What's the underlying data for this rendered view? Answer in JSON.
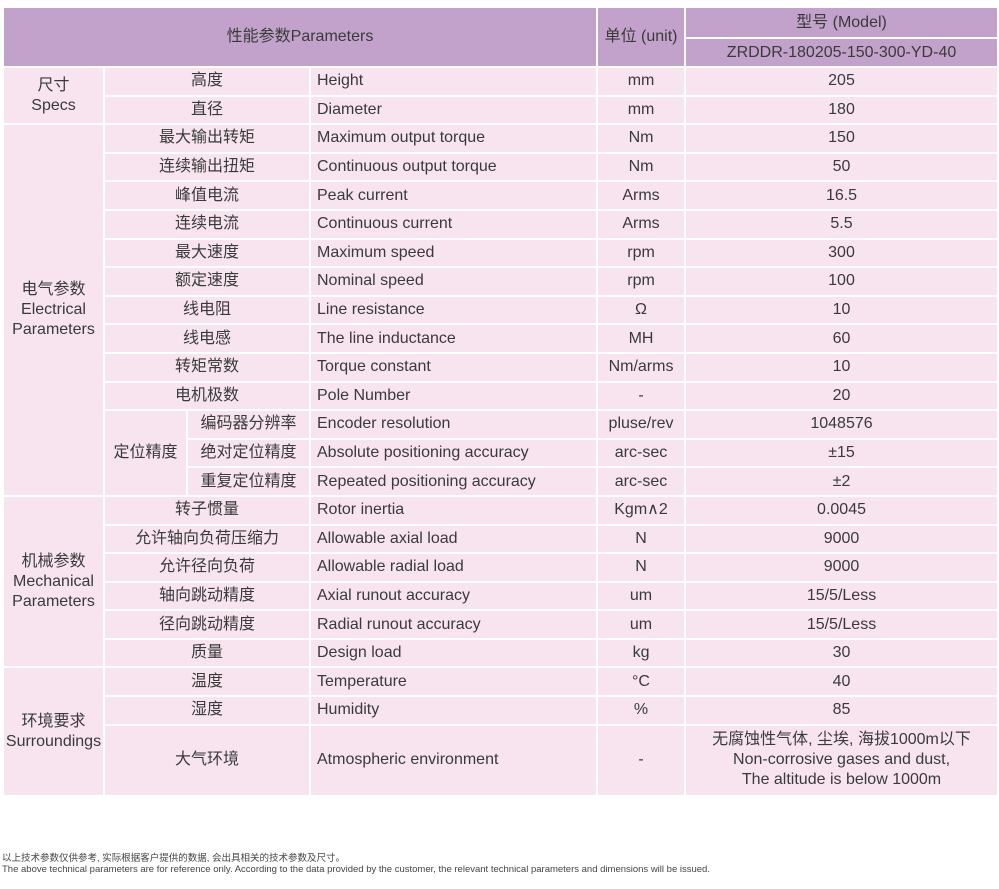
{
  "header": {
    "parameters": "性能参数Parameters",
    "unit": "单位 (unit)",
    "model_label": "型号 (Model)",
    "model": "ZRDDR-180205-150-300-YD-40"
  },
  "groups": [
    {
      "label_cn": "尺寸",
      "label_en": "Specs",
      "rows": [
        {
          "cn": "高度",
          "en": "Height",
          "unit": "mm",
          "value": "205"
        },
        {
          "cn": "直径",
          "en": "Diameter",
          "unit": "mm",
          "value": "180"
        }
      ]
    },
    {
      "label_cn": "电气参数",
      "label_en": "Electrical Parameters",
      "rows": [
        {
          "cn": "最大输出转矩",
          "en": "Maximum output torque",
          "unit": "Nm",
          "value": "150"
        },
        {
          "cn": "连续输出扭矩",
          "en": "Continuous output torque",
          "unit": "Nm",
          "value": "50"
        },
        {
          "cn": "峰值电流",
          "en": "Peak current",
          "unit": "Arms",
          "value": "16.5"
        },
        {
          "cn": "连续电流",
          "en": "Continuous current",
          "unit": "Arms",
          "value": "5.5"
        },
        {
          "cn": "最大速度",
          "en": "Maximum speed",
          "unit": "rpm",
          "value": "300"
        },
        {
          "cn": "额定速度",
          "en": "Nominal speed",
          "unit": "rpm",
          "value": "100"
        },
        {
          "cn": "线电阻",
          "en": "Line resistance",
          "unit": "Ω",
          "value": "10"
        },
        {
          "cn": "线电感",
          "en": "The line inductance",
          "unit": "MH",
          "value": "60"
        },
        {
          "cn": "转矩常数",
          "en": "Torque constant",
          "unit": "Nm/arms",
          "value": "10"
        },
        {
          "cn": "电机极数",
          "en": "Pole Number",
          "unit": "-",
          "value": "20"
        },
        {
          "sub": "定位精度",
          "cn": "编码器分辨率",
          "en": "Encoder resolution",
          "unit": "pluse/rev",
          "value": "1048576"
        },
        {
          "sub": "定位精度",
          "cn": "绝对定位精度",
          "en": "Absolute positioning accuracy",
          "unit": "arc-sec",
          "value": "±15"
        },
        {
          "sub": "定位精度",
          "cn": "重复定位精度",
          "en": "Repeated positioning accuracy",
          "unit": "arc-sec",
          "value": "±2"
        }
      ]
    },
    {
      "label_cn": "机械参数",
      "label_en": "Mechanical Parameters",
      "rows": [
        {
          "cn": "转子惯量",
          "en": "Rotor inertia",
          "unit": "Kgm∧2",
          "value": "0.0045"
        },
        {
          "cn": "允许轴向负荷压缩力",
          "en": "Allowable axial load",
          "unit": "N",
          "value": "9000"
        },
        {
          "cn": "允许径向负荷",
          "en": "Allowable radial load",
          "unit": "N",
          "value": "9000"
        },
        {
          "cn": "轴向跳动精度",
          "en": "Axial runout accuracy",
          "unit": "um",
          "value": "15/5/Less"
        },
        {
          "cn": "径向跳动精度",
          "en": "Radial runout accuracy",
          "unit": "um",
          "value": "15/5/Less"
        },
        {
          "cn": "质量",
          "en": "Design load",
          "unit": "kg",
          "value": "30"
        }
      ]
    },
    {
      "label_cn": "环境要求",
      "label_en": "Surroundings",
      "rows": [
        {
          "cn": "温度",
          "en": "Temperature",
          "unit": "°C",
          "value": "40"
        },
        {
          "cn": "湿度",
          "en": "Humidity",
          "unit": "%",
          "value": "85"
        },
        {
          "cn": "大气环境",
          "en": "Atmospheric environment",
          "unit": "-",
          "value": "无腐蚀性气体, 尘埃, 海拔1000m以下\nNon-corrosive gases and dust,\nThe altitude is below 1000m"
        }
      ]
    }
  ],
  "footer": {
    "note_cn": "以上技术参数仅供参考, 实际根据客户提供的数据, 会出具相关的技术参数及尺寸。",
    "note_en": "The above technical parameters are for reference only. According to the data provided by the customer, the relevant technical parameters and dimensions will be issued."
  }
}
